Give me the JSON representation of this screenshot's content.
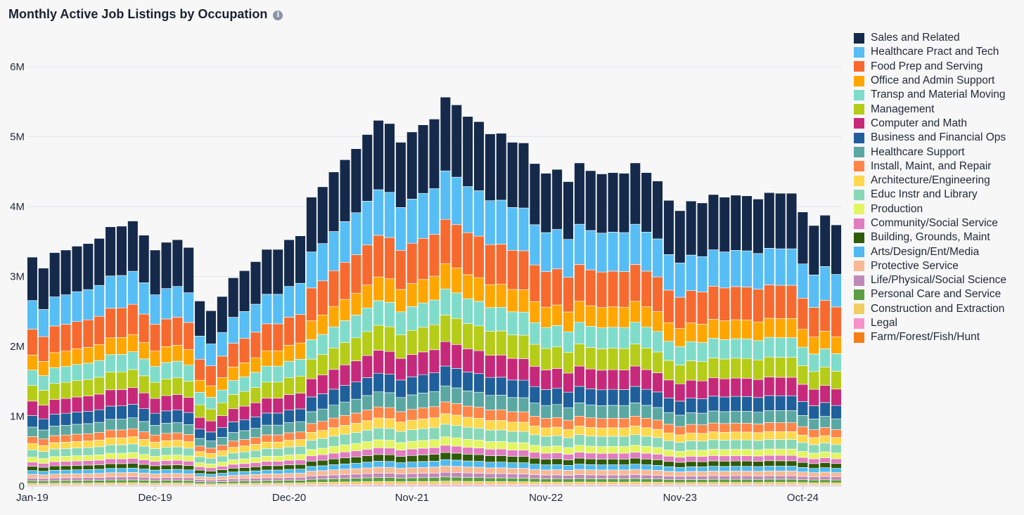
{
  "title": "Monthly Active Job Listings by Occupation",
  "info_icon": "info-icon",
  "chart_data": {
    "type": "bar",
    "stacked": true,
    "x_tick_labels": [
      "Jan-19",
      "Dec-19",
      "Dec-20",
      "Nov-21",
      "Nov-22",
      "Nov-23",
      "Oct-24"
    ],
    "y_tick_labels": [
      "0",
      "1M",
      "2M",
      "3M",
      "4M",
      "5M",
      "6M"
    ],
    "ylim": [
      0,
      6000000
    ],
    "grid": true,
    "legend_position": "right",
    "totals": [
      3550000,
      3380000,
      3620000,
      3660000,
      3720000,
      3760000,
      3840000,
      4020000,
      4030000,
      4110000,
      3890000,
      3660000,
      3780000,
      3820000,
      3700000,
      2870000,
      2720000,
      2940000,
      3230000,
      3340000,
      3480000,
      3670000,
      3670000,
      3820000,
      3880000,
      4480000,
      4640000,
      4870000,
      5060000,
      5230000,
      5450000,
      5670000,
      5620000,
      5330000,
      5490000,
      5600000,
      5690000,
      6030000,
      5910000,
      5730000,
      5650000,
      5460000,
      5470000,
      5330000,
      5320000,
      5000000,
      4850000,
      4910000,
      4720000,
      5010000,
      4890000,
      4840000,
      4860000,
      4850000,
      5010000,
      4860000,
      4730000,
      4430000,
      4270000,
      4420000,
      4390000,
      4520000,
      4480000,
      4510000,
      4500000,
      4450000,
      4550000,
      4540000,
      4540000,
      4250000,
      4040000,
      4200000,
      4050000
    ],
    "series": [
      {
        "name": "Sales and Related",
        "color": "#152a4a",
        "share": 0.175
      },
      {
        "name": "Healthcare Pract and Tech",
        "color": "#57bdf5",
        "share": 0.115
      },
      {
        "name": "Food Prep and Serving",
        "color": "#f76a2f",
        "share": 0.105
      },
      {
        "name": "Office and Admin Support",
        "color": "#ffa600",
        "share": 0.06
      },
      {
        "name": "Transp and Material Moving",
        "color": "#7fdcca",
        "share": 0.062
      },
      {
        "name": "Management",
        "color": "#b5cc18",
        "share": 0.063
      },
      {
        "name": "Computer and Math",
        "color": "#c7297a",
        "share": 0.058
      },
      {
        "name": "Business and Financial Ops",
        "color": "#1f5f9b",
        "share": 0.047
      },
      {
        "name": "Healthcare Support",
        "color": "#5ba8a3",
        "share": 0.038
      },
      {
        "name": "Install, Maint, and Repair",
        "color": "#ff8548",
        "share": 0.028
      },
      {
        "name": "Architecture/Engineering",
        "color": "#ffd84d",
        "share": 0.025
      },
      {
        "name": "Educ Instr and Library",
        "color": "#88d8b8",
        "share": 0.03
      },
      {
        "name": "Production",
        "color": "#e3f562",
        "share": 0.02
      },
      {
        "name": "Community/Social Service",
        "color": "#e27cc1",
        "share": 0.017
      },
      {
        "name": "Building, Grounds, Maint",
        "color": "#2f5a07",
        "share": 0.017
      },
      {
        "name": "Arts/Design/Ent/Media",
        "color": "#4fb9f0",
        "share": 0.015
      },
      {
        "name": "Protective Service",
        "color": "#f9b995",
        "share": 0.015
      },
      {
        "name": "Life/Physical/Social Science",
        "color": "#c089b8",
        "share": 0.011
      },
      {
        "name": "Personal Care and Service",
        "color": "#5b9e44",
        "share": 0.01
      },
      {
        "name": "Construction and Extraction",
        "color": "#f2cd63",
        "share": 0.007
      },
      {
        "name": "Legal",
        "color": "#f792c9",
        "share": 0.003
      },
      {
        "name": "Farm/Forest/Fish/Hunt",
        "color": "#f57f17",
        "share": 0.002
      }
    ]
  }
}
